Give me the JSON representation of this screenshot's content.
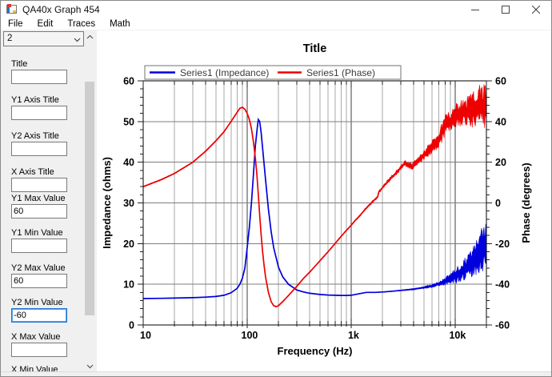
{
  "window": {
    "title": "QA40x Graph 454",
    "controls": [
      "minimize",
      "maximize",
      "close"
    ]
  },
  "menubar": {
    "items": [
      "File",
      "Edit",
      "Traces",
      "Math"
    ]
  },
  "sidebar": {
    "trace_selector": {
      "value": "2"
    },
    "fields": [
      {
        "label": "Title",
        "value": "",
        "focused": false
      },
      {
        "label": "Y1 Axis Title",
        "value": "",
        "focused": false
      },
      {
        "label": "Y2 Axis Title",
        "value": "",
        "focused": false
      },
      {
        "label": "X Axis Title",
        "value": "",
        "focused": false
      },
      {
        "label": "Y1 Max Value",
        "value": "60",
        "focused": false
      },
      {
        "label": "Y1 Min Value",
        "value": "",
        "focused": false
      },
      {
        "label": "Y2 Max Value",
        "value": "60",
        "focused": false
      },
      {
        "label": "Y2 Min Value",
        "value": "-60",
        "focused": true
      },
      {
        "label": "X Max Value",
        "value": "",
        "focused": false
      },
      {
        "label": "X Min Value",
        "value": "",
        "focused": false
      }
    ]
  },
  "chart_data": {
    "type": "line",
    "title": "Title",
    "x_axis": {
      "label": "Frequency (Hz)",
      "scale": "log",
      "min": 10,
      "max": 20000,
      "major_ticks": [
        10,
        100,
        1000,
        10000
      ],
      "major_tick_labels": [
        "10",
        "100",
        "1k",
        "10k"
      ]
    },
    "y_left": {
      "label": "Impedance (ohms)",
      "min": 0,
      "max": 60,
      "step": 10,
      "minor_step": 2,
      "tick_labels": [
        "0",
        "10",
        "20",
        "30",
        "40",
        "50",
        "60"
      ]
    },
    "y_right": {
      "label": "Phase (degrees)",
      "min": -60,
      "max": 60,
      "step": 20,
      "minor_step": 4,
      "tick_labels": [
        "-60",
        "-40",
        "-20",
        "0",
        "20",
        "40",
        "60"
      ]
    },
    "grid": true,
    "legend": {
      "position": "top",
      "entries": [
        {
          "label": "Series1 (Impedance)",
          "color": "#0000dd"
        },
        {
          "label": "Series1 (Phase)",
          "color": "#ee0000"
        }
      ]
    },
    "series": [
      {
        "name": "Series1 (Impedance)",
        "axis": "left",
        "color": "#0000dd",
        "points": [
          [
            10,
            6.5
          ],
          [
            15,
            6.55
          ],
          [
            20,
            6.6
          ],
          [
            30,
            6.7
          ],
          [
            40,
            6.85
          ],
          [
            50,
            7.0
          ],
          [
            60,
            7.3
          ],
          [
            70,
            7.9
          ],
          [
            80,
            9.0
          ],
          [
            85,
            10
          ],
          [
            90,
            11.5
          ],
          [
            95,
            14
          ],
          [
            100,
            19
          ],
          [
            105,
            24
          ],
          [
            110,
            30
          ],
          [
            115,
            37
          ],
          [
            120,
            44
          ],
          [
            125,
            48.5
          ],
          [
            128,
            50.5
          ],
          [
            132,
            50
          ],
          [
            136,
            47.5
          ],
          [
            140,
            44
          ],
          [
            145,
            40
          ],
          [
            150,
            36
          ],
          [
            160,
            28.5
          ],
          [
            170,
            23
          ],
          [
            180,
            19
          ],
          [
            200,
            14.2
          ],
          [
            220,
            11.8
          ],
          [
            250,
            10
          ],
          [
            300,
            8.6
          ],
          [
            350,
            8.1
          ],
          [
            400,
            7.8
          ],
          [
            500,
            7.5
          ],
          [
            600,
            7.35
          ],
          [
            700,
            7.3
          ],
          [
            800,
            7.25
          ],
          [
            900,
            7.25
          ],
          [
            1000,
            7.3
          ],
          [
            1200,
            7.7
          ],
          [
            1400,
            8.0
          ],
          [
            1700,
            8.0
          ],
          [
            2000,
            8.1
          ],
          [
            2500,
            8.3
          ],
          [
            3000,
            8.5
          ],
          [
            4000,
            8.8
          ],
          [
            5000,
            9.2
          ],
          [
            6000,
            9.6
          ],
          [
            7000,
            10.1
          ],
          [
            8000,
            10.7
          ],
          [
            10000,
            12
          ],
          [
            12000,
            13.5
          ],
          [
            15000,
            15.5
          ],
          [
            18000,
            18.5
          ],
          [
            20000,
            20
          ]
        ],
        "noise_halfwidth": [
          [
            10,
            0.06
          ],
          [
            2000,
            0.07
          ],
          [
            3000,
            0.12
          ],
          [
            5000,
            0.3
          ],
          [
            7000,
            0.6
          ],
          [
            8000,
            0.9
          ],
          [
            10000,
            1.8
          ],
          [
            12000,
            2.8
          ],
          [
            15000,
            4.0
          ],
          [
            18000,
            5.5
          ],
          [
            20000,
            6.5
          ]
        ]
      },
      {
        "name": "Series1 (Phase)",
        "axis": "right",
        "color": "#ee0000",
        "points": [
          [
            10,
            8
          ],
          [
            15,
            11.5
          ],
          [
            20,
            14.5
          ],
          [
            25,
            17.5
          ],
          [
            30,
            20
          ],
          [
            40,
            25.5
          ],
          [
            50,
            30.5
          ],
          [
            60,
            35
          ],
          [
            70,
            40
          ],
          [
            80,
            44.5
          ],
          [
            85,
            46.5
          ],
          [
            90,
            47
          ],
          [
            95,
            46
          ],
          [
            100,
            44
          ],
          [
            105,
            41
          ],
          [
            110,
            36.5
          ],
          [
            115,
            30
          ],
          [
            120,
            22
          ],
          [
            124,
            14
          ],
          [
            128,
            4
          ],
          [
            132,
            -6
          ],
          [
            136,
            -15
          ],
          [
            140,
            -23
          ],
          [
            145,
            -30
          ],
          [
            150,
            -36
          ],
          [
            160,
            -44
          ],
          [
            170,
            -48.5
          ],
          [
            180,
            -50.5
          ],
          [
            190,
            -51
          ],
          [
            200,
            -50.5
          ],
          [
            220,
            -48.5
          ],
          [
            250,
            -45.5
          ],
          [
            300,
            -41
          ],
          [
            350,
            -37
          ],
          [
            400,
            -34
          ],
          [
            500,
            -28.5
          ],
          [
            600,
            -24
          ],
          [
            700,
            -20
          ],
          [
            800,
            -16.5
          ],
          [
            900,
            -13.5
          ],
          [
            1000,
            -11
          ],
          [
            1100,
            -8.5
          ],
          [
            1200,
            -6.5
          ],
          [
            1400,
            -2.5
          ],
          [
            1600,
            0.5
          ],
          [
            1800,
            3
          ],
          [
            1850,
            5.5
          ],
          [
            1900,
            6
          ],
          [
            2000,
            7.5
          ],
          [
            2200,
            10
          ],
          [
            2500,
            13
          ],
          [
            2800,
            15.5
          ],
          [
            3000,
            17.5
          ],
          [
            3300,
            19.5
          ],
          [
            3600,
            18.5
          ],
          [
            3900,
            18
          ],
          [
            4200,
            19.5
          ],
          [
            4500,
            21
          ],
          [
            5000,
            23.5
          ],
          [
            6000,
            27.5
          ],
          [
            7000,
            31
          ],
          [
            8000,
            38
          ],
          [
            9000,
            40
          ],
          [
            10000,
            42.5
          ],
          [
            12000,
            44
          ],
          [
            15000,
            46
          ],
          [
            18000,
            48
          ],
          [
            20000,
            49
          ]
        ],
        "noise_halfwidth": [
          [
            10,
            0.3
          ],
          [
            500,
            0.3
          ],
          [
            1000,
            0.4
          ],
          [
            1500,
            0.6
          ],
          [
            2000,
            0.8
          ],
          [
            3000,
            1.3
          ],
          [
            4000,
            1.9
          ],
          [
            5000,
            2.6
          ],
          [
            6000,
            3.3
          ],
          [
            7000,
            4.2
          ],
          [
            8000,
            5.5
          ],
          [
            9000,
            6
          ],
          [
            10000,
            6.5
          ],
          [
            12000,
            7.5
          ],
          [
            15000,
            9
          ],
          [
            18000,
            11.5
          ],
          [
            20000,
            12
          ]
        ]
      }
    ]
  }
}
